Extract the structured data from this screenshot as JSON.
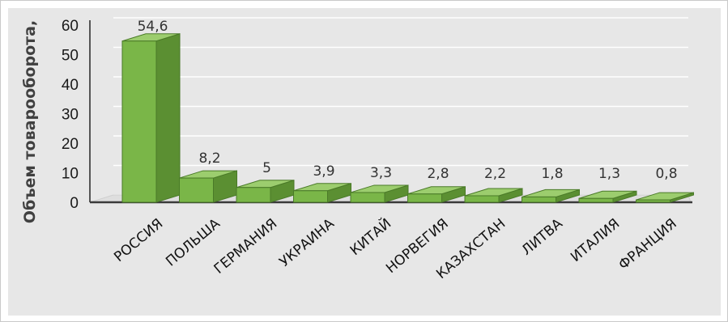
{
  "chart_data": {
    "type": "bar",
    "style": "3d-column",
    "categories": [
      "РОССИЯ",
      "ПОЛЬША",
      "ГЕРМАНИЯ",
      "УКРАИНА",
      "КИТАЙ",
      "НОРВЕГИЯ",
      "КАЗАХСТАН",
      "ЛИТВА",
      "ИТАЛИЯ",
      "ФРАНЦИЯ"
    ],
    "values": [
      54.6,
      8.2,
      5,
      3.9,
      3.3,
      2.8,
      2.2,
      1.8,
      1.3,
      0.8
    ],
    "data_labels": [
      "54,6",
      "8,2",
      "5",
      "3,9",
      "3,3",
      "2,8",
      "2,2",
      "1,8",
      "1,3",
      "0,8"
    ],
    "ylabel": "Объем товарооборота,",
    "ylim": [
      0,
      60
    ],
    "yticks": [
      0,
      10,
      20,
      30,
      40,
      50,
      60
    ],
    "ytick_labels": [
      "0",
      "10",
      "20",
      "30",
      "40",
      "50",
      "60"
    ],
    "grid": true,
    "colors": {
      "bar_front": "#7ab648",
      "bar_side": "#5b8f32",
      "bar_top": "#9ccd6e",
      "bar_edge": "#4a7a28",
      "background": "#e7e7e7"
    }
  }
}
